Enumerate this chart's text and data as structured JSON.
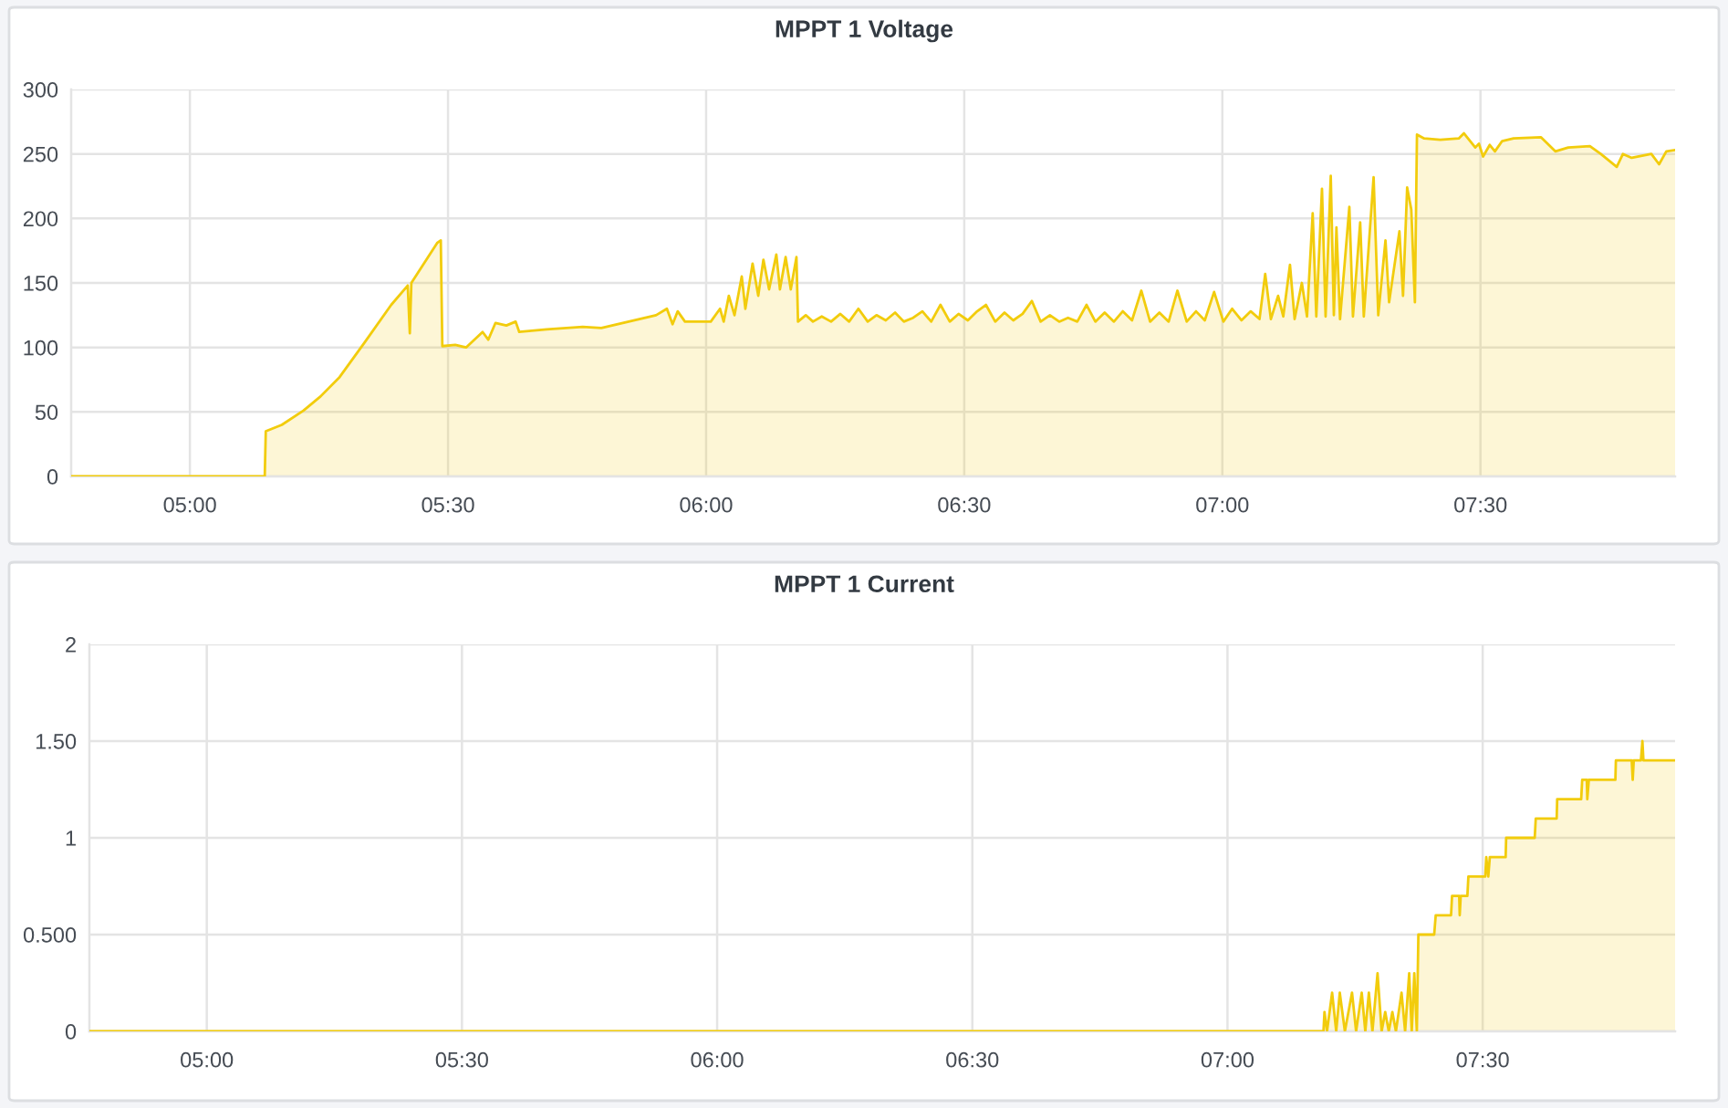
{
  "chart_data": [
    {
      "type": "area",
      "title": "MPPT 1 Voltage",
      "x": [
        4.77,
        5.145,
        5.147,
        5.178,
        5.22,
        5.253,
        5.29,
        5.337,
        5.39,
        5.422,
        5.426,
        5.429,
        5.479,
        5.486,
        5.489,
        5.514,
        5.535,
        5.567,
        5.578,
        5.592,
        5.613,
        5.631,
        5.638,
        5.691,
        5.761,
        5.797,
        5.85,
        5.903,
        5.924,
        5.935,
        5.945,
        5.959,
        6.009,
        6.027,
        6.034,
        6.044,
        6.055,
        6.069,
        6.076,
        6.09,
        6.101,
        6.111,
        6.122,
        6.136,
        6.143,
        6.154,
        6.164,
        6.175,
        6.178,
        6.193,
        6.207,
        6.224,
        6.242,
        6.26,
        6.277,
        6.295,
        6.313,
        6.33,
        6.348,
        6.366,
        6.383,
        6.401,
        6.419,
        6.436,
        6.454,
        6.472,
        6.489,
        6.507,
        6.525,
        6.542,
        6.56,
        6.578,
        6.595,
        6.613,
        6.631,
        6.648,
        6.666,
        6.684,
        6.701,
        6.719,
        6.737,
        6.754,
        6.772,
        6.79,
        6.807,
        6.825,
        6.843,
        6.86,
        6.878,
        6.896,
        6.913,
        6.931,
        6.949,
        6.966,
        6.984,
        7.002,
        7.019,
        7.037,
        7.055,
        7.072,
        7.083,
        7.094,
        7.108,
        7.118,
        7.131,
        7.14,
        7.154,
        7.164,
        7.175,
        7.182,
        7.193,
        7.2,
        7.21,
        7.216,
        7.221,
        7.228,
        7.246,
        7.253,
        7.267,
        7.274,
        7.293,
        7.302,
        7.316,
        7.323,
        7.343,
        7.35,
        7.358,
        7.366,
        7.373,
        7.377,
        7.391,
        7.422,
        7.458,
        7.468,
        7.49,
        7.497,
        7.505,
        7.518,
        7.528,
        7.542,
        7.564,
        7.617,
        7.645,
        7.67,
        7.712,
        7.733,
        7.764,
        7.776,
        7.793,
        7.831,
        7.846,
        7.86,
        7.877
      ],
      "series": [
        {
          "color": "#f2cc0c",
          "values": [
            0,
            0,
            35,
            40,
            51,
            62,
            77,
            103,
            133,
            148,
            111,
            150,
            181,
            183,
            101,
            102,
            100,
            112,
            106,
            119,
            117,
            120,
            112,
            114,
            116,
            115,
            120,
            125,
            130,
            118,
            128,
            120,
            120,
            130,
            120,
            140,
            125,
            155,
            130,
            165,
            140,
            168,
            145,
            172,
            145,
            170,
            145,
            170,
            120,
            125,
            120,
            124,
            120,
            126,
            120,
            130,
            120,
            125,
            121,
            127,
            120,
            123,
            128,
            120,
            133,
            120,
            126,
            121,
            128,
            133,
            120,
            127,
            121,
            126,
            136,
            120,
            125,
            120,
            123,
            120,
            133,
            120,
            127,
            120,
            128,
            121,
            144,
            120,
            127,
            120,
            144,
            120,
            128,
            121,
            143,
            120,
            130,
            121,
            128,
            122,
            157,
            122,
            140,
            124,
            164,
            122,
            150,
            124,
            204,
            124,
            223,
            124,
            233,
            125,
            193,
            122,
            209,
            124,
            197,
            124,
            232,
            125,
            183,
            135,
            190,
            140,
            224,
            207,
            135,
            265,
            262,
            261,
            262,
            266,
            255,
            258,
            248,
            257,
            252,
            260,
            262,
            263,
            252,
            255,
            256,
            250,
            240,
            250,
            247,
            250,
            242,
            252,
            253
          ]
        }
      ],
      "xlim": [
        4.77,
        7.877
      ],
      "xticks": [
        {
          "value": 5,
          "label": "05:00"
        },
        {
          "value": 5.5,
          "label": "05:30"
        },
        {
          "value": 6,
          "label": "06:00"
        },
        {
          "value": 6.5,
          "label": "06:30"
        },
        {
          "value": 7,
          "label": "07:00"
        },
        {
          "value": 7.5,
          "label": "07:30"
        }
      ],
      "ylim": [
        0,
        300
      ],
      "yticks": [
        0,
        50,
        100,
        150,
        200,
        250,
        300
      ],
      "grid": true
    },
    {
      "type": "area",
      "title": "MPPT 1 Current",
      "x": [
        4.77,
        7.188,
        7.19,
        7.195,
        7.205,
        7.213,
        7.22,
        7.23,
        7.244,
        7.252,
        7.263,
        7.27,
        7.277,
        7.284,
        7.294,
        7.302,
        7.309,
        7.316,
        7.323,
        7.33,
        7.341,
        7.348,
        7.356,
        7.361,
        7.366,
        7.371,
        7.374,
        7.405,
        7.408,
        7.438,
        7.44,
        7.454,
        7.455,
        7.457,
        7.47,
        7.472,
        7.505,
        7.507,
        7.511,
        7.514,
        7.545,
        7.546,
        7.602,
        7.604,
        7.645,
        7.646,
        7.693,
        7.695,
        7.704,
        7.705,
        7.708,
        7.76,
        7.761,
        7.792,
        7.794,
        7.796,
        7.81,
        7.813,
        7.815,
        7.877
      ],
      "series": [
        {
          "color": "#f2cc0c",
          "values": [
            0,
            0,
            0.1,
            0,
            0.2,
            0,
            0.2,
            0,
            0.2,
            0,
            0.2,
            0,
            0.2,
            0,
            0.3,
            0,
            0.1,
            0,
            0.1,
            0,
            0.2,
            0,
            0.3,
            0,
            0.3,
            0,
            0.5,
            0.5,
            0.6,
            0.6,
            0.7,
            0.7,
            0.6,
            0.7,
            0.7,
            0.8,
            0.8,
            0.9,
            0.8,
            0.9,
            0.9,
            1.0,
            1.0,
            1.1,
            1.1,
            1.2,
            1.2,
            1.3,
            1.3,
            1.2,
            1.3,
            1.3,
            1.4,
            1.4,
            1.3,
            1.4,
            1.4,
            1.5,
            1.4,
            1.4
          ]
        }
      ],
      "xlim": [
        4.77,
        7.877
      ],
      "xticks": [
        {
          "value": 5,
          "label": "05:00"
        },
        {
          "value": 5.5,
          "label": "05:30"
        },
        {
          "value": 6,
          "label": "06:00"
        },
        {
          "value": 6.5,
          "label": "06:30"
        },
        {
          "value": 7,
          "label": "07:00"
        },
        {
          "value": 7.5,
          "label": "07:30"
        }
      ],
      "ylim": [
        0,
        2
      ],
      "yticks": [
        0,
        {
          "value": 0.5,
          "label": "0.500"
        },
        1,
        {
          "value": 1.5,
          "label": "1.50"
        },
        2
      ],
      "grid": true
    }
  ]
}
